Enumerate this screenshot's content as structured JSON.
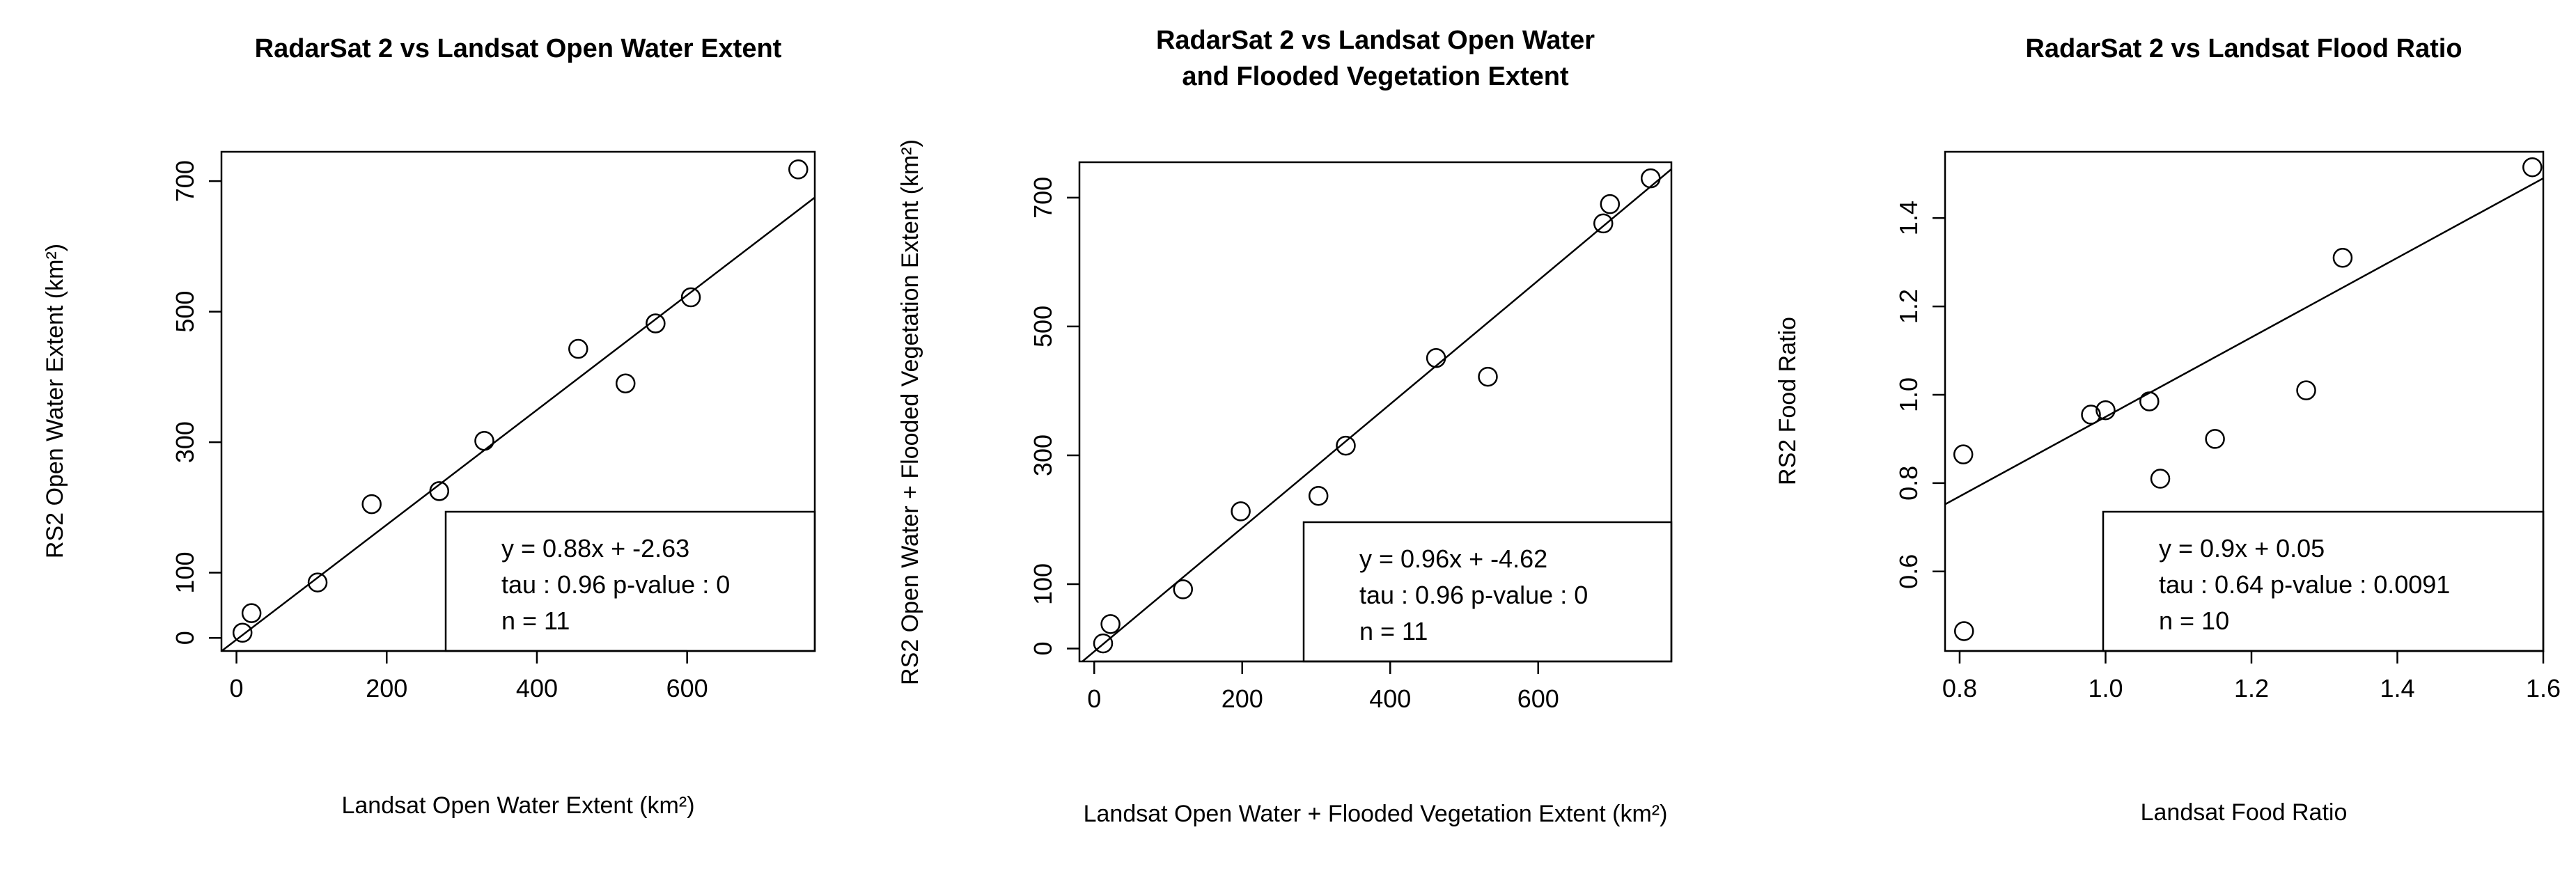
{
  "chart_data": [
    {
      "type": "scatter",
      "title_lines": [
        "RadarSat 2 vs Landsat Open Water Extent"
      ],
      "xlabel": "Landsat Open Water Extent (km²)",
      "ylabel": "RS2 Open Water Extent (km²)",
      "xlim": [
        -20,
        770
      ],
      "ylim": [
        -20,
        745
      ],
      "xticks": [
        0,
        200,
        400,
        600
      ],
      "yticks": [
        0,
        100,
        300,
        500,
        700
      ],
      "x": [
        8,
        20,
        108,
        180,
        270,
        330,
        455,
        518,
        558,
        605,
        748
      ],
      "y": [
        8,
        38,
        85,
        205,
        225,
        302,
        443,
        390,
        482,
        522,
        718
      ],
      "fit": {
        "slope": 0.88,
        "intercept": -2.63
      },
      "stats": [
        "y = 0.88x + -2.63",
        "tau :  0.96   p-value :  0",
        "n = 11"
      ]
    },
    {
      "type": "scatter",
      "title_lines": [
        "RadarSat 2 vs Landsat Open Water",
        "and Flooded Vegetation Extent"
      ],
      "xlabel": "Landsat Open Water + Flooded Vegetation Extent (km²)",
      "ylabel": "RS2 Open Water + Flooded Vegetation Extent (km²)",
      "xlim": [
        -20,
        780
      ],
      "ylim": [
        -20,
        755
      ],
      "xticks": [
        0,
        200,
        400,
        600
      ],
      "yticks": [
        0,
        100,
        300,
        500,
        700
      ],
      "x": [
        12,
        22,
        120,
        198,
        303,
        340,
        462,
        532,
        688,
        697,
        752
      ],
      "y": [
        8,
        38,
        92,
        213,
        237,
        315,
        451,
        422,
        660,
        690,
        730
      ],
      "fit": {
        "slope": 0.96,
        "intercept": -4.62
      },
      "stats": [
        "y = 0.96x + -4.62",
        "tau :  0.96   p-value :  0",
        "n = 11"
      ]
    },
    {
      "type": "scatter",
      "title_lines": [
        "RadarSat 2 vs Landsat Flood Ratio"
      ],
      "xlabel": "Landsat Food Ratio",
      "ylabel": "RS2 Food Ratio",
      "xlim": [
        0.78,
        1.6
      ],
      "ylim": [
        0.42,
        1.55
      ],
      "xticks": [
        0.8,
        1.0,
        1.2,
        1.4,
        1.6
      ],
      "xtick_labels": [
        "0.8",
        "1.0",
        "1.2",
        "1.4",
        "1.6"
      ],
      "yticks": [
        0.6,
        0.8,
        1.0,
        1.2,
        1.4
      ],
      "ytick_labels": [
        "0.6",
        "0.8",
        "1.0",
        "1.2",
        "1.4"
      ],
      "x": [
        0.805,
        0.806,
        0.98,
        1.0,
        1.06,
        1.075,
        1.15,
        1.275,
        1.325,
        1.585
      ],
      "y": [
        0.865,
        0.465,
        0.955,
        0.965,
        0.985,
        0.81,
        0.9,
        1.01,
        1.31,
        1.515
      ],
      "fit": {
        "slope": 0.9,
        "intercept": 0.05
      },
      "stats": [
        "y = 0.9x + 0.05",
        "tau :  0.64   p-value :  0.0091",
        "n = 10"
      ]
    }
  ]
}
